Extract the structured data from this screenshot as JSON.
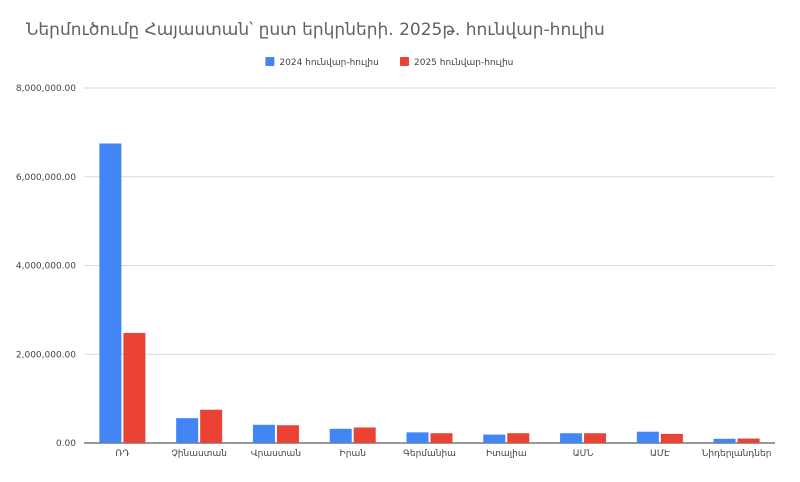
{
  "chart_data": {
    "type": "bar",
    "title": "Ներմուծումը Հայաստան՝ ըստ երկրների. 2025թ. հունվար-հուլիս",
    "xlabel": "",
    "ylabel": "",
    "categories": [
      "ՌԴ",
      "Չինաստան",
      "Վրաստան",
      "Իրան",
      "Գերմանիա",
      "Իտալիա",
      "ԱՄՆ",
      "ԱՄԷ",
      "Նիդերլանդներ"
    ],
    "series": [
      {
        "name": "2024 հունվար-հուլիս",
        "color": "#4285f4",
        "values": [
          6750000,
          560000,
          410000,
          320000,
          240000,
          190000,
          220000,
          255000,
          95000
        ]
      },
      {
        "name": "2025 հունվար-հուլիս",
        "color": "#ea4335",
        "values": [
          2480000,
          750000,
          400000,
          350000,
          220000,
          220000,
          220000,
          205000,
          100000
        ]
      }
    ],
    "ylim": [
      0,
      8000000
    ],
    "yticks": [
      "0.00",
      "2,000,000.00",
      "4,000,000.00",
      "6,000,000.00",
      "8,000,000.00"
    ],
    "ytick_values": [
      0,
      2000000,
      4000000,
      6000000,
      8000000
    ],
    "grid": true,
    "legend_position": "top-center"
  }
}
